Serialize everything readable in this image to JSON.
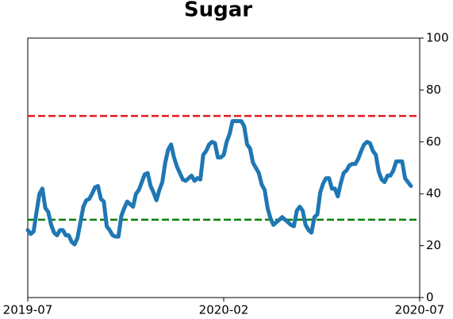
{
  "chart_data": {
    "type": "line",
    "title": "Sugar",
    "series": [
      {
        "color": "#1f77b4",
        "values": [
          26,
          24.5,
          25.5,
          33,
          40,
          42,
          34.5,
          33,
          28,
          25,
          24,
          26,
          26,
          24,
          24,
          21.5,
          20.5,
          23,
          29,
          35,
          37.5,
          38,
          40,
          42.5,
          43,
          38,
          37,
          27.5,
          26,
          24,
          23.5,
          23.5,
          31.5,
          34.5,
          37,
          36,
          35,
          40,
          41.5,
          44.5,
          47.5,
          48,
          43,
          40.5,
          37.5,
          41.5,
          44.5,
          52,
          57,
          59,
          54,
          50.5,
          48,
          45.5,
          45,
          46,
          47,
          45,
          46,
          45.5,
          55,
          56.5,
          59,
          60,
          59.5,
          54,
          54,
          55,
          60,
          63,
          68,
          68,
          68,
          68,
          66,
          59,
          57.5,
          52,
          50,
          48,
          43.5,
          41.5,
          34.5,
          30.5,
          28,
          29,
          30,
          31,
          30,
          29,
          28,
          27.5,
          33.5,
          35,
          33.5,
          28,
          26,
          25,
          31,
          32,
          40.5,
          44,
          46,
          46,
          42,
          42,
          39,
          44,
          48,
          49,
          51,
          51.5,
          51.5,
          53.5,
          56.5,
          59,
          60,
          59.5,
          56.5,
          55,
          48.5,
          45.5,
          44.5,
          47,
          47,
          49,
          52.5,
          52.5,
          52.5,
          46,
          44.5,
          43
        ]
      }
    ],
    "xlim": [
      0,
      134
    ],
    "xticks": [
      {
        "value": 0,
        "label": "2019-07"
      },
      {
        "value": 67,
        "label": "2020-02"
      },
      {
        "value": 134,
        "label": "2020-07"
      }
    ],
    "ylim": [
      0,
      100
    ],
    "yticks": [
      0,
      20,
      40,
      60,
      80,
      100
    ],
    "y_axis_side": "right",
    "hlines": [
      {
        "value": 70,
        "color": "#e31a1c",
        "style": "dashed"
      },
      {
        "value": 30,
        "color": "#008000",
        "style": "dashed"
      }
    ]
  }
}
